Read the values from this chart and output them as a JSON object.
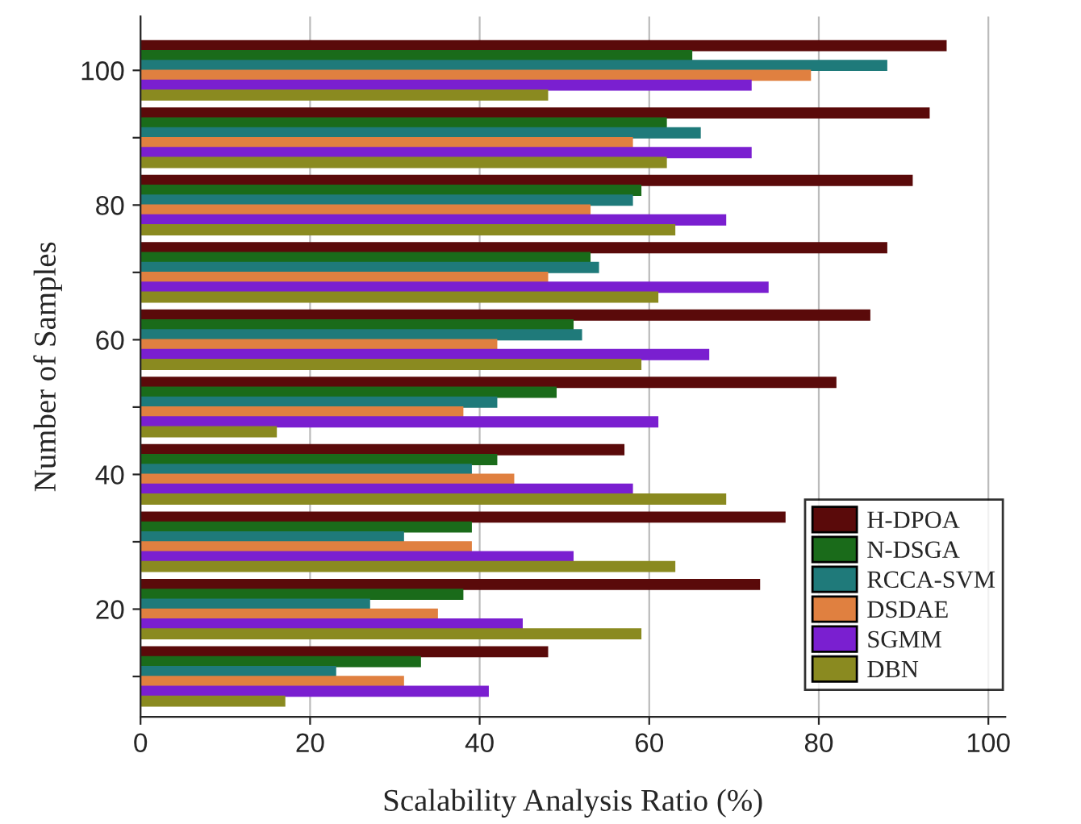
{
  "chart_data": {
    "type": "bar",
    "orientation": "horizontal",
    "xlabel": "Scalability Analysis Ratio (%)",
    "ylabel": "Number of Samples",
    "x": [
      10,
      20,
      30,
      40,
      50,
      60,
      70,
      80,
      90,
      100
    ],
    "series": [
      {
        "name": "H-DPOA",
        "color": "#5a0a0a",
        "values": [
          48,
          73,
          76,
          57,
          82,
          86,
          88,
          91,
          93,
          95
        ]
      },
      {
        "name": "N-DSGA",
        "color": "#1a6b1a",
        "values": [
          33,
          38,
          39,
          42,
          49,
          51,
          53,
          59,
          62,
          65
        ]
      },
      {
        "name": "RCCA-SVM",
        "color": "#1f7a7a",
        "values": [
          23,
          27,
          31,
          39,
          42,
          52,
          54,
          58,
          66,
          88
        ]
      },
      {
        "name": "DSDAE",
        "color": "#e08040",
        "values": [
          31,
          35,
          39,
          44,
          38,
          42,
          48,
          53,
          58,
          79
        ]
      },
      {
        "name": "SGMM",
        "color": "#7a1fd0",
        "values": [
          41,
          45,
          51,
          58,
          61,
          67,
          74,
          69,
          72,
          72
        ]
      },
      {
        "name": "DBN",
        "color": "#8a8a20",
        "values": [
          17,
          59,
          63,
          69,
          16,
          59,
          61,
          63,
          62,
          48
        ]
      }
    ],
    "xlim": [
      0,
      102
    ],
    "xticks": [
      0,
      20,
      40,
      60,
      80,
      100
    ],
    "ylim": [
      4,
      108
    ],
    "yticks": [
      {
        "value": 10,
        "label": null
      },
      20,
      {
        "value": 30,
        "label": null
      },
      40,
      {
        "value": 50,
        "label": null
      },
      60,
      {
        "value": 70,
        "label": null
      },
      80,
      {
        "value": 90,
        "label": null
      },
      100
    ],
    "grid": "x",
    "legend": "bottom right"
  }
}
